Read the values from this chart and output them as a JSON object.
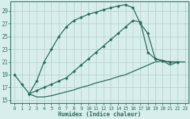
{
  "xlabel": "Humidex (Indice chaleur)",
  "background_color": "#d8eeed",
  "grid_color": "#b8d4d0",
  "line_color": "#2a6b5a",
  "xlim": [
    -0.5,
    23.5
  ],
  "ylim": [
    14.5,
    30.5
  ],
  "xticks": [
    0,
    1,
    2,
    3,
    4,
    5,
    6,
    7,
    8,
    9,
    10,
    11,
    12,
    13,
    14,
    15,
    16,
    17,
    18,
    19,
    20,
    21,
    22,
    23
  ],
  "yticks": [
    15,
    17,
    19,
    21,
    23,
    25,
    27,
    29
  ],
  "line1_x": [
    0,
    1,
    2,
    3,
    4,
    5,
    6,
    7,
    8,
    9,
    10,
    11,
    12,
    13,
    14,
    15,
    16,
    17,
    18,
    19,
    20,
    21,
    22
  ],
  "line1_y": [
    19.0,
    17.5,
    16.0,
    18.0,
    21.0,
    23.0,
    25.0,
    26.5,
    27.5,
    28.0,
    28.5,
    28.8,
    29.2,
    29.5,
    29.8,
    30.0,
    29.5,
    27.0,
    25.5,
    21.5,
    21.2,
    21.0,
    21.0
  ],
  "line2_x": [
    2,
    3,
    4,
    5,
    6,
    7,
    8,
    9,
    10,
    11,
    12,
    13,
    14,
    15,
    16,
    17,
    18,
    19,
    20,
    21,
    22
  ],
  "line2_y": [
    16.0,
    16.5,
    17.0,
    17.5,
    18.0,
    18.5,
    19.5,
    20.5,
    21.5,
    22.5,
    23.5,
    24.5,
    25.5,
    26.5,
    27.5,
    27.3,
    22.5,
    21.5,
    21.2,
    21.0,
    21.0
  ],
  "line3_x": [
    2,
    3,
    4,
    5,
    6,
    7,
    8,
    9,
    10,
    11,
    12,
    13,
    14,
    15,
    16,
    17,
    18,
    19,
    20,
    21,
    22,
    23
  ],
  "line3_y": [
    16.0,
    15.5,
    15.5,
    15.7,
    16.0,
    16.3,
    16.6,
    17.0,
    17.3,
    17.7,
    18.0,
    18.3,
    18.7,
    19.0,
    19.5,
    20.0,
    20.5,
    21.0,
    21.2,
    20.5,
    21.0,
    21.0
  ],
  "marker": "D",
  "markersize": 2.5,
  "linewidth": 1.0
}
